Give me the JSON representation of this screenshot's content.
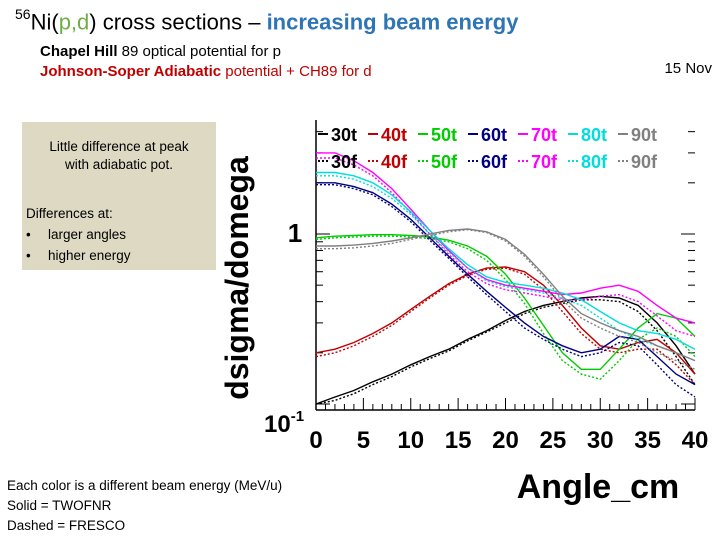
{
  "slide": {
    "title_sup": "56",
    "title_ni": "Ni(",
    "title_pd": "p,d",
    "title_close": ")",
    "title_rest": " cross sections – ",
    "title_highlight": "increasing beam energy",
    "sub1_bold": "Chapel Hill",
    "sub1_rest": " 89 optical potential for p",
    "sub2_bold": "Johnson-Soper Adiabatic",
    "sub2_rest": " potential + CH89 for d",
    "date": "15 Nov",
    "box": {
      "peak_line1": "Little difference at peak",
      "peak_line2": "with adiabatic pot.",
      "diff_heading": "Differences at:",
      "bullet": "•",
      "item1": "larger angles",
      "item2": "higher energy"
    },
    "footer": {
      "line1": "Each color is a different beam energy (MeV/u)",
      "line2": "Solid = TWOFNR",
      "line3": "Dashed = FRESCO"
    }
  },
  "chart_data": {
    "type": "line",
    "xlabel": "Angle_cm",
    "ylabel": "dsigma/domega",
    "xlim": [
      0,
      40
    ],
    "ylim": [
      0.1,
      4.0
    ],
    "y_log": true,
    "x_ticks": [
      "0",
      "5",
      "10",
      "15",
      "20",
      "25",
      "30",
      "35",
      "40"
    ],
    "y_tick_1": "1",
    "y_tick_01_base": "10",
    "y_tick_01_exp": "-1",
    "legend_position": "top",
    "x": [
      0,
      2,
      4,
      6,
      8,
      10,
      12,
      14,
      16,
      18,
      20,
      22,
      24,
      26,
      28,
      30,
      32,
      34,
      36,
      38,
      40
    ],
    "series": [
      {
        "name": "30t",
        "color": "#000000",
        "style": "solid",
        "values": [
          0.1,
          0.11,
          0.12,
          0.135,
          0.15,
          0.17,
          0.19,
          0.21,
          0.24,
          0.27,
          0.31,
          0.35,
          0.38,
          0.4,
          0.42,
          0.43,
          0.42,
          0.38,
          0.3,
          0.22,
          0.15
        ]
      },
      {
        "name": "30f",
        "color": "#000000",
        "style": "dashed",
        "values": [
          0.1,
          0.105,
          0.115,
          0.13,
          0.145,
          0.165,
          0.185,
          0.205,
          0.235,
          0.265,
          0.3,
          0.34,
          0.37,
          0.39,
          0.41,
          0.41,
          0.4,
          0.35,
          0.27,
          0.19,
          0.13
        ]
      },
      {
        "name": "40t",
        "color": "#c00000",
        "style": "solid",
        "values": [
          0.2,
          0.21,
          0.23,
          0.26,
          0.3,
          0.36,
          0.43,
          0.51,
          0.58,
          0.63,
          0.64,
          0.6,
          0.5,
          0.38,
          0.28,
          0.22,
          0.21,
          0.23,
          0.24,
          0.2,
          0.15
        ]
      },
      {
        "name": "40f",
        "color": "#c00000",
        "style": "dashed",
        "values": [
          0.19,
          0.2,
          0.22,
          0.25,
          0.29,
          0.35,
          0.42,
          0.5,
          0.57,
          0.62,
          0.63,
          0.58,
          0.47,
          0.35,
          0.26,
          0.21,
          0.2,
          0.21,
          0.21,
          0.17,
          0.13
        ]
      },
      {
        "name": "50t",
        "color": "#00cc00",
        "style": "solid",
        "values": [
          0.95,
          0.97,
          0.98,
          0.99,
          0.99,
          0.98,
          0.96,
          0.92,
          0.85,
          0.74,
          0.58,
          0.42,
          0.29,
          0.2,
          0.16,
          0.16,
          0.21,
          0.28,
          0.34,
          0.32,
          0.25
        ]
      },
      {
        "name": "50f",
        "color": "#00cc00",
        "style": "dashed",
        "values": [
          0.93,
          0.95,
          0.96,
          0.97,
          0.97,
          0.96,
          0.94,
          0.9,
          0.82,
          0.7,
          0.54,
          0.39,
          0.26,
          0.18,
          0.15,
          0.14,
          0.18,
          0.24,
          0.28,
          0.25,
          0.19
        ]
      },
      {
        "name": "60t",
        "color": "#000080",
        "style": "solid",
        "values": [
          2.0,
          2.0,
          1.9,
          1.75,
          1.5,
          1.22,
          0.95,
          0.74,
          0.58,
          0.46,
          0.37,
          0.3,
          0.25,
          0.22,
          0.2,
          0.21,
          0.25,
          0.24,
          0.19,
          0.15,
          0.13
        ]
      },
      {
        "name": "60f",
        "color": "#000080",
        "style": "dashed",
        "values": [
          1.95,
          1.95,
          1.85,
          1.7,
          1.45,
          1.18,
          0.92,
          0.72,
          0.56,
          0.44,
          0.35,
          0.28,
          0.24,
          0.21,
          0.19,
          0.2,
          0.23,
          0.22,
          0.17,
          0.13,
          0.11
        ]
      },
      {
        "name": "70t",
        "color": "#ff00ff",
        "style": "solid",
        "values": [
          3.0,
          3.0,
          2.7,
          2.3,
          1.85,
          1.4,
          1.05,
          0.8,
          0.63,
          0.54,
          0.5,
          0.48,
          0.46,
          0.44,
          0.45,
          0.48,
          0.5,
          0.46,
          0.38,
          0.32,
          0.3
        ]
      },
      {
        "name": "70f",
        "color": "#ff00ff",
        "style": "dashed",
        "values": [
          2.8,
          2.8,
          2.55,
          2.2,
          1.75,
          1.33,
          1.0,
          0.76,
          0.6,
          0.51,
          0.47,
          0.45,
          0.43,
          0.41,
          0.41,
          0.43,
          0.44,
          0.4,
          0.33,
          0.27,
          0.25
        ]
      },
      {
        "name": "80t",
        "color": "#00dddd",
        "style": "solid",
        "values": [
          2.3,
          2.3,
          2.2,
          2.0,
          1.7,
          1.35,
          1.05,
          0.82,
          0.66,
          0.56,
          0.52,
          0.5,
          0.48,
          0.45,
          0.41,
          0.35,
          0.3,
          0.27,
          0.26,
          0.24,
          0.21
        ]
      },
      {
        "name": "80f",
        "color": "#00dddd",
        "style": "dashed",
        "values": [
          2.2,
          2.2,
          2.1,
          1.9,
          1.62,
          1.3,
          1.0,
          0.78,
          0.63,
          0.53,
          0.49,
          0.47,
          0.45,
          0.42,
          0.38,
          0.32,
          0.27,
          0.24,
          0.22,
          0.2,
          0.18
        ]
      },
      {
        "name": "90t",
        "color": "#808080",
        "style": "solid",
        "values": [
          0.85,
          0.85,
          0.86,
          0.88,
          0.91,
          0.95,
          1.0,
          1.05,
          1.07,
          1.03,
          0.93,
          0.76,
          0.58,
          0.43,
          0.34,
          0.3,
          0.27,
          0.25,
          0.22,
          0.2,
          0.18
        ]
      },
      {
        "name": "90f",
        "color": "#808080",
        "style": "dashed",
        "values": [
          0.82,
          0.82,
          0.83,
          0.85,
          0.88,
          0.93,
          0.98,
          1.03,
          1.06,
          1.02,
          0.91,
          0.74,
          0.56,
          0.41,
          0.32,
          0.28,
          0.25,
          0.23,
          0.2,
          0.18,
          0.16
        ]
      }
    ]
  }
}
